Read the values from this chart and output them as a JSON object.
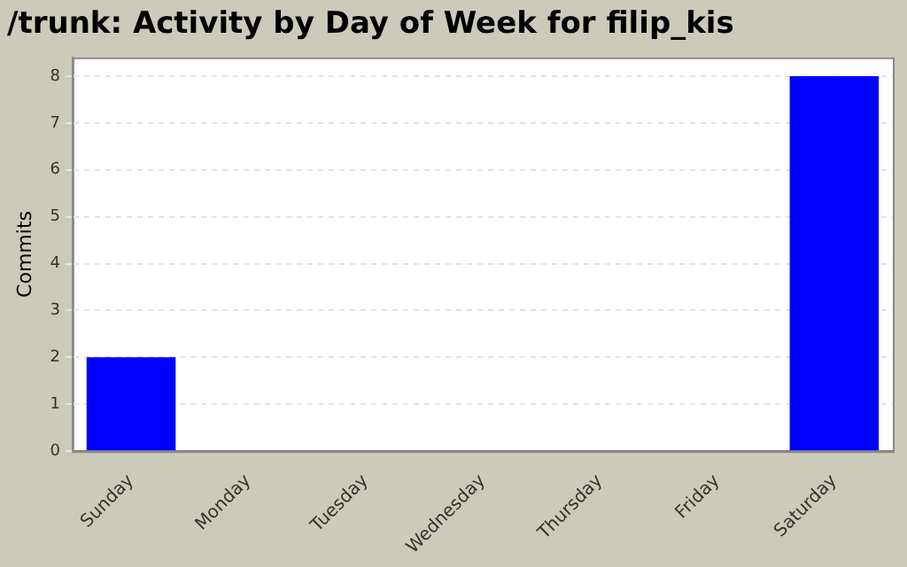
{
  "chart_data": {
    "type": "bar",
    "title": "/trunk: Activity by Day of Week for filip_kis",
    "ylabel": "Commits",
    "categories": [
      "Sunday",
      "Monday",
      "Tuesday",
      "Wednesday",
      "Thursday",
      "Friday",
      "Saturday"
    ],
    "values": [
      2,
      0,
      0,
      0,
      0,
      0,
      8
    ],
    "color": "#0000ff",
    "ylim": [
      0,
      8.4
    ],
    "yticks": [
      0,
      1,
      2,
      3,
      4,
      5,
      6,
      7,
      8
    ],
    "grid": "y",
    "legend": false
  }
}
